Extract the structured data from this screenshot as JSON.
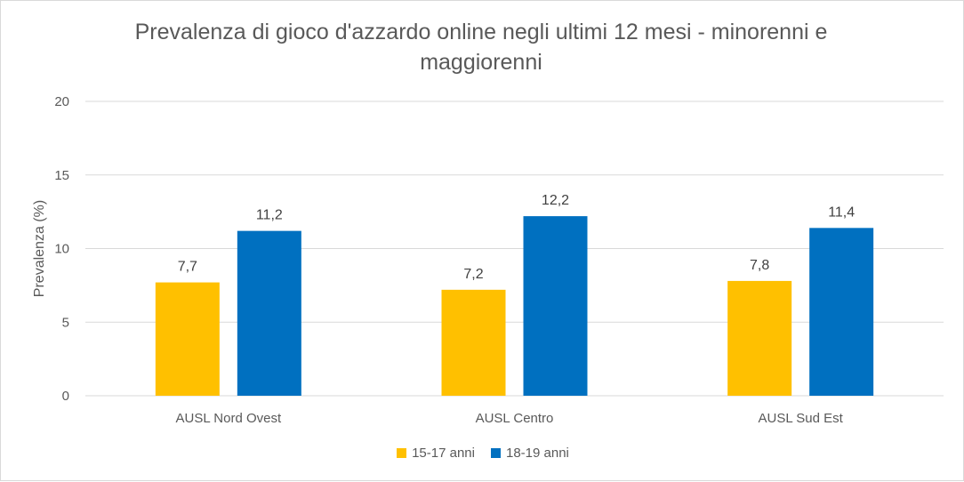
{
  "chart_data": {
    "type": "bar",
    "title": "Prevalenza di gioco d'azzardo online negli ultimi 12 mesi - minorenni e maggiorenni",
    "xlabel": "",
    "ylabel": "Prevalenza (%)",
    "ylim": [
      0,
      20
    ],
    "yticks": [
      "0",
      "5",
      "10",
      "15",
      "20"
    ],
    "ytick_values": [
      0,
      5,
      10,
      15,
      20
    ],
    "grid": true,
    "legend_position": "bottom",
    "categories": [
      "AUSL Nord Ovest",
      "AUSL Centro",
      "AUSL Sud Est"
    ],
    "series": [
      {
        "name": "15-17 anni",
        "color": "#FFC000",
        "values": [
          7.7,
          7.2,
          7.8
        ],
        "labels": [
          "7,7",
          "7,2",
          "7,8"
        ]
      },
      {
        "name": "18-19 anni",
        "color": "#0070C0",
        "values": [
          11.2,
          12.2,
          11.4
        ],
        "labels": [
          "11,2",
          "12,2",
          "11,4"
        ]
      }
    ]
  }
}
